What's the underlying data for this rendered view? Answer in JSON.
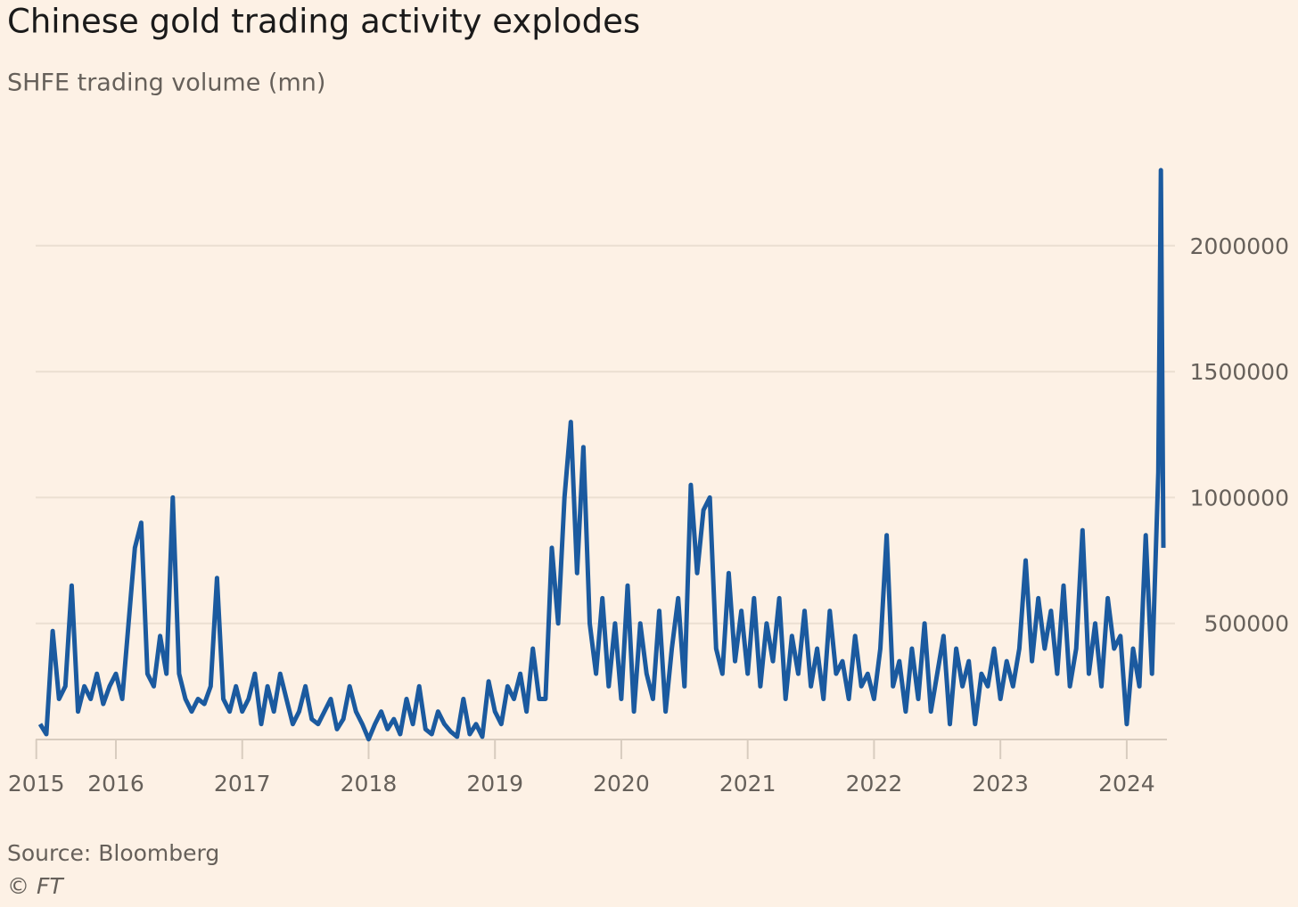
{
  "chart_data": {
    "type": "line",
    "title": "Chinese gold trading activity explodes",
    "subtitle": "SHFE trading volume (mn)",
    "source": "Source: Bloomberg",
    "credit": "© FT",
    "x": [
      2015.4,
      2015.45,
      2015.5,
      2015.55,
      2015.6,
      2015.65,
      2015.7,
      2015.75,
      2015.8,
      2015.85,
      2015.9,
      2015.95,
      2016,
      2016.05,
      2016.1,
      2016.15,
      2016.2,
      2016.25,
      2016.3,
      2016.35,
      2016.4,
      2016.45,
      2016.5,
      2016.55,
      2016.6,
      2016.65,
      2016.7,
      2016.75,
      2016.8,
      2016.85,
      2016.9,
      2016.95,
      2017,
      2017.05,
      2017.1,
      2017.15,
      2017.2,
      2017.25,
      2017.3,
      2017.35,
      2017.4,
      2017.45,
      2017.5,
      2017.55,
      2017.6,
      2017.65,
      2017.7,
      2017.75,
      2017.8,
      2017.85,
      2017.9,
      2017.95,
      2018,
      2018.05,
      2018.1,
      2018.15,
      2018.2,
      2018.25,
      2018.3,
      2018.35,
      2018.4,
      2018.45,
      2018.5,
      2018.55,
      2018.6,
      2018.65,
      2018.7,
      2018.75,
      2018.8,
      2018.85,
      2018.9,
      2018.95,
      2019,
      2019.05,
      2019.1,
      2019.15,
      2019.2,
      2019.25,
      2019.3,
      2019.35,
      2019.4,
      2019.45,
      2019.5,
      2019.55,
      2019.6,
      2019.65,
      2019.7,
      2019.75,
      2019.8,
      2019.85,
      2019.9,
      2019.95,
      2020,
      2020.05,
      2020.1,
      2020.15,
      2020.2,
      2020.25,
      2020.3,
      2020.35,
      2020.4,
      2020.45,
      2020.5,
      2020.55,
      2020.6,
      2020.65,
      2020.7,
      2020.75,
      2020.8,
      2020.85,
      2020.9,
      2020.95,
      2021,
      2021.05,
      2021.1,
      2021.15,
      2021.2,
      2021.25,
      2021.3,
      2021.35,
      2021.4,
      2021.45,
      2021.5,
      2021.55,
      2021.6,
      2021.65,
      2021.7,
      2021.75,
      2021.8,
      2021.85,
      2021.9,
      2021.95,
      2022,
      2022.05,
      2022.1,
      2022.15,
      2022.2,
      2022.25,
      2022.3,
      2022.35,
      2022.4,
      2022.45,
      2022.5,
      2022.55,
      2022.6,
      2022.65,
      2022.7,
      2022.75,
      2022.8,
      2022.85,
      2022.9,
      2022.95,
      2023,
      2023.05,
      2023.1,
      2023.15,
      2023.2,
      2023.25,
      2023.3,
      2023.35,
      2023.4,
      2023.45,
      2023.5,
      2023.55,
      2023.6,
      2023.65,
      2023.7,
      2023.75,
      2023.8,
      2023.85,
      2023.9,
      2023.95,
      2024,
      2024.05,
      2024.1,
      2024.15,
      2024.2,
      2024.25,
      2024.27,
      2024.29
    ],
    "series": [
      {
        "name": "SHFE trading volume",
        "color": "#1b5a9f",
        "values": [
          100000,
          60000,
          470000,
          200000,
          250000,
          650000,
          150000,
          250000,
          200000,
          300000,
          180000,
          250000,
          300000,
          200000,
          500000,
          800000,
          900000,
          300000,
          250000,
          450000,
          300000,
          1000000,
          300000,
          200000,
          150000,
          200000,
          180000,
          250000,
          680000,
          200000,
          150000,
          250000,
          150000,
          200000,
          300000,
          100000,
          250000,
          150000,
          300000,
          200000,
          100000,
          150000,
          250000,
          120000,
          100000,
          150000,
          200000,
          80000,
          120000,
          250000,
          150000,
          100000,
          40000,
          100000,
          150000,
          80000,
          120000,
          60000,
          200000,
          100000,
          250000,
          80000,
          60000,
          150000,
          100000,
          70000,
          50000,
          200000,
          60000,
          100000,
          50000,
          270000,
          150000,
          100000,
          250000,
          200000,
          300000,
          150000,
          400000,
          200000,
          200000,
          800000,
          500000,
          1000000,
          1300000,
          700000,
          1200000,
          500000,
          300000,
          600000,
          250000,
          500000,
          200000,
          650000,
          150000,
          500000,
          300000,
          200000,
          550000,
          150000,
          400000,
          600000,
          250000,
          1050000,
          700000,
          950000,
          1000000,
          400000,
          300000,
          700000,
          350000,
          550000,
          300000,
          600000,
          250000,
          500000,
          350000,
          600000,
          200000,
          450000,
          300000,
          550000,
          250000,
          400000,
          200000,
          550000,
          300000,
          350000,
          200000,
          450000,
          250000,
          300000,
          200000,
          400000,
          850000,
          250000,
          350000,
          150000,
          400000,
          200000,
          500000,
          150000,
          300000,
          450000,
          100000,
          400000,
          250000,
          350000,
          100000,
          300000,
          250000,
          400000,
          200000,
          350000,
          250000,
          400000,
          750000,
          350000,
          600000,
          400000,
          550000,
          300000,
          650000,
          250000,
          400000,
          870000,
          300000,
          500000,
          250000,
          600000,
          400000,
          450000,
          100000,
          400000,
          250000,
          850000,
          300000,
          1100000,
          2300000,
          800000
        ]
      }
    ],
    "xlim": [
      2015.365,
      2024.29
    ],
    "xticks": [
      {
        "value": 2015.37,
        "label": "2015"
      },
      2016,
      2017,
      2018,
      2019,
      2020,
      2021,
      2022,
      2023,
      2024
    ],
    "ylim": [
      0,
      2300000
    ],
    "yticks": [
      500000,
      1000000,
      1500000,
      2000000
    ],
    "grid": true
  }
}
